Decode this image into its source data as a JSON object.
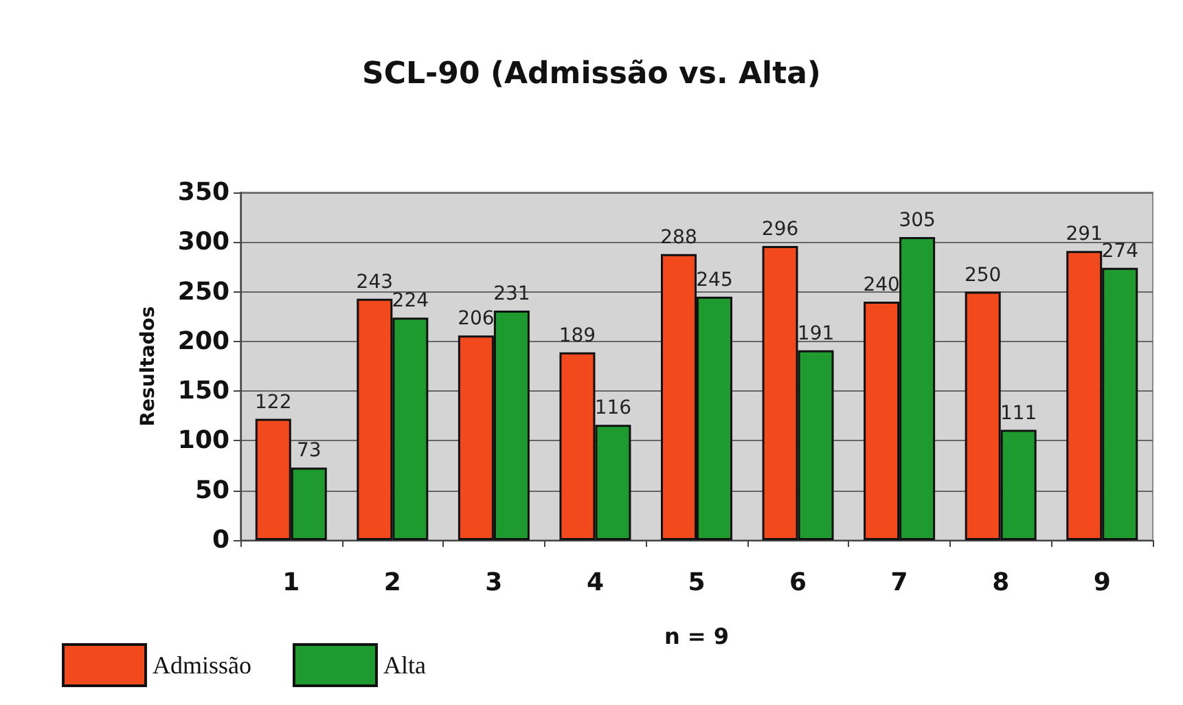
{
  "chart_data": {
    "type": "bar",
    "title": "SCL-90 (Admissão vs. Alta)",
    "xlabel": "n = 9",
    "ylabel": "Resultados",
    "categories": [
      "1",
      "2",
      "3",
      "4",
      "5",
      "6",
      "7",
      "8",
      "9"
    ],
    "series": [
      {
        "name": "Admissão",
        "color": "#f24a1c",
        "values": [
          122,
          243,
          206,
          189,
          288,
          296,
          240,
          250,
          291
        ]
      },
      {
        "name": "Alta",
        "color": "#1e9a2e",
        "values": [
          73,
          224,
          231,
          116,
          245,
          191,
          305,
          111,
          274
        ]
      }
    ],
    "ylim": [
      0,
      350
    ],
    "yticks": [
      0,
      50,
      100,
      150,
      200,
      250,
      300,
      350
    ],
    "grid": "y",
    "legend": "bottom left",
    "data_labels": true
  }
}
